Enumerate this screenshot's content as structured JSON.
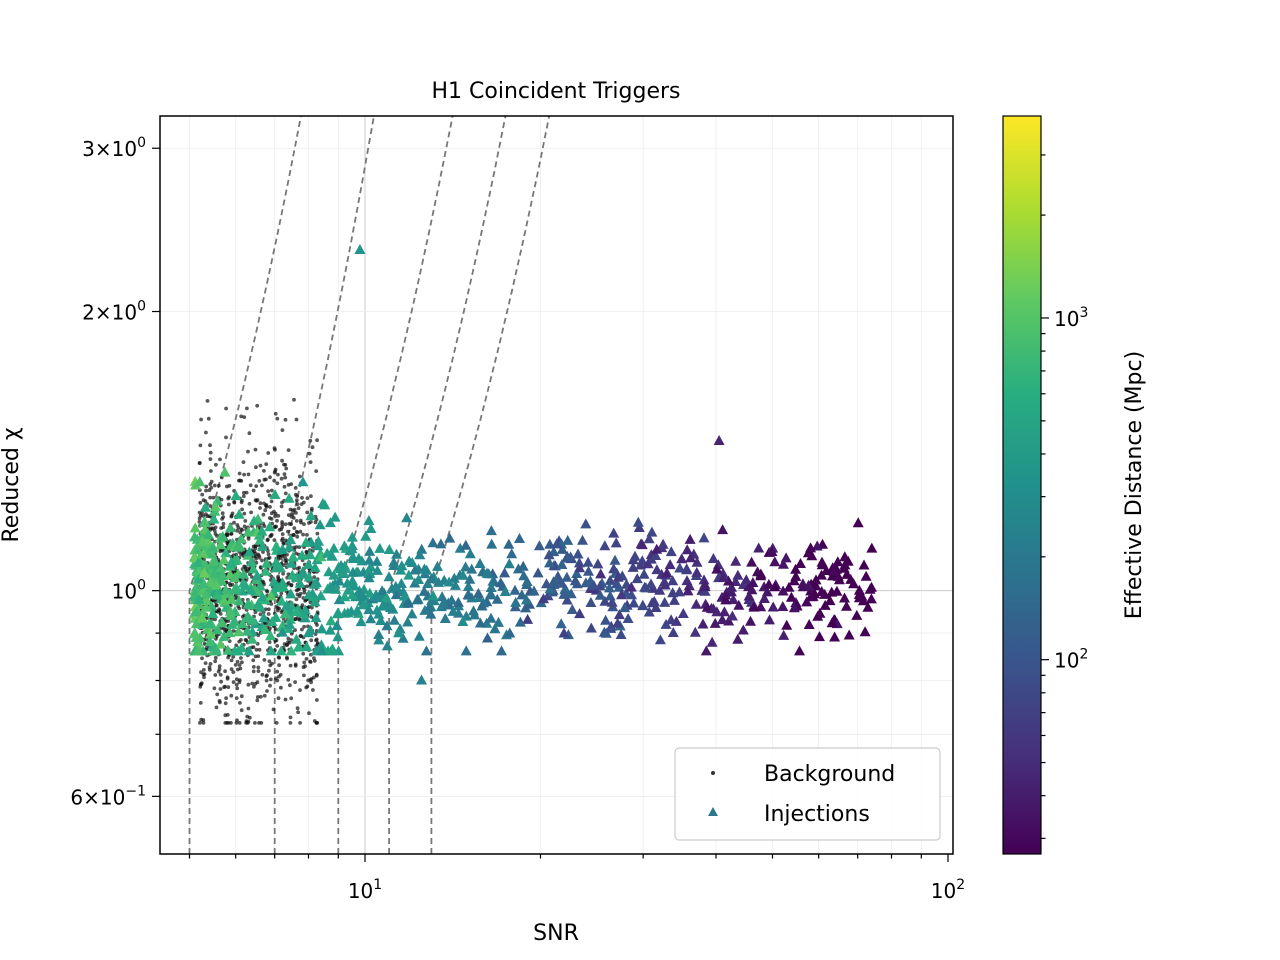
{
  "chart_data": {
    "type": "scatter",
    "title": "H1 Coincident Triggers",
    "xlabel": "SNR",
    "ylabel": "Reduced χ",
    "xscale": "log",
    "yscale": "log",
    "xlim": [
      4.45,
      102
    ],
    "ylim": [
      0.52,
      3.25
    ],
    "grid": true,
    "legend_position": "bottom-right",
    "x_ticks": [
      {
        "value": 10,
        "base": "10",
        "exp": "1"
      },
      {
        "value": 100,
        "base": "10",
        "exp": "2"
      }
    ],
    "y_ticks": [
      {
        "value": 0.6,
        "mant": "6",
        "exp": "−1"
      },
      {
        "value": 1.0,
        "base": "10",
        "exp": "0"
      },
      {
        "value": 2.0,
        "mant": "2",
        "exp": "0"
      },
      {
        "value": 3.0,
        "mant": "3",
        "exp": "0"
      }
    ],
    "colorbar": {
      "label": "Effective Distance (Mpc)",
      "scale": "log",
      "colormap": "viridis",
      "range": [
        27,
        3900
      ],
      "ticks": [
        {
          "value": 100,
          "base": "10",
          "exp": "2"
        },
        {
          "value": 1000,
          "base": "10",
          "exp": "3"
        }
      ]
    },
    "threshold_curves": [
      {
        "snr_start": 5.0,
        "snr_end": 7.8
      },
      {
        "snr_start": 7.0,
        "snr_end": 10.4
      },
      {
        "snr_start": 9.0,
        "snr_end": 14.2
      },
      {
        "snr_start": 11.0,
        "snr_end": 17.5
      },
      {
        "snr_start": 13.0,
        "snr_end": 20.8
      }
    ],
    "series": [
      {
        "name": "Background",
        "marker": "dot",
        "color": "#333333",
        "count": 1300,
        "snr_range": [
          5.2,
          8.3
        ],
        "chi_range": [
          0.72,
          1.78
        ]
      },
      {
        "name": "Injections",
        "marker": "triangle",
        "color": "#2a788e",
        "count": 900,
        "snr_range": [
          5.1,
          74
        ],
        "chi_range": [
          0.78,
          2.33
        ]
      }
    ],
    "notable_points": [
      {
        "series": "Injections",
        "snr": 9.8,
        "chi": 2.33
      },
      {
        "series": "Injections",
        "snr": 12.5,
        "chi": 0.8
      },
      {
        "series": "Injections",
        "snr": 40.5,
        "chi": 1.45
      },
      {
        "series": "Injections",
        "snr": 74,
        "chi": 1.11
      }
    ]
  }
}
